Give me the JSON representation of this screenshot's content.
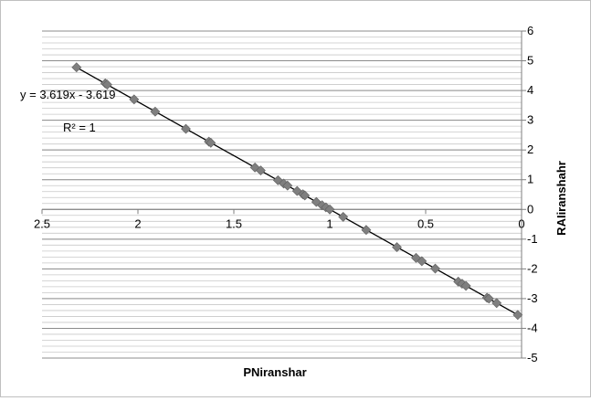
{
  "chart_data": {
    "type": "scatter",
    "title": "",
    "xlabel": "PNiranshar",
    "ylabel": "RAIiranshahr",
    "xlim": [
      2.5,
      0
    ],
    "ylim": [
      -5,
      6
    ],
    "x_reversed": true,
    "x_ticks": [
      2.5,
      2,
      1.5,
      1,
      0.5,
      0
    ],
    "x_tick_labels": [
      "2.5",
      "2",
      "1.5",
      "1",
      "0.5",
      "0"
    ],
    "y_ticks": [
      -5,
      -4,
      -3,
      -2,
      -1,
      0,
      1,
      2,
      3,
      4,
      5,
      6
    ],
    "y_tick_labels": [
      "-5",
      "-4",
      "-3",
      "-2",
      "-1",
      "0",
      "1",
      "2",
      "3",
      "4",
      "5",
      "6"
    ],
    "y_axis_side": "right",
    "grid": "horizontal major and minor",
    "marker": "diamond",
    "marker_color": "#7f7f7f",
    "trendline": {
      "type": "linear",
      "slope": 3.619,
      "intercept": -3.619,
      "equation_label": "y = 3.619x - 3.619",
      "r2_label": "R² = 1",
      "color": "#000000"
    },
    "series": [
      {
        "x": [
          2.32,
          2.17,
          2.16,
          2.02,
          1.91,
          1.75,
          1.63,
          1.62,
          1.39,
          1.36,
          1.27,
          1.24,
          1.22,
          1.17,
          1.14,
          1.13,
          1.07,
          1.04,
          1.02,
          1.0,
          0.93,
          0.81,
          0.65,
          0.55,
          0.52,
          0.45,
          0.33,
          0.31,
          0.29,
          0.18,
          0.17,
          0.13,
          0.02
        ],
        "y": [
          4.78,
          4.24,
          4.2,
          3.7,
          3.29,
          2.71,
          2.28,
          2.24,
          1.41,
          1.31,
          0.98,
          0.87,
          0.8,
          0.62,
          0.51,
          0.47,
          0.25,
          0.14,
          0.07,
          0.0,
          -0.25,
          -0.69,
          -1.27,
          -1.63,
          -1.74,
          -1.99,
          -2.43,
          -2.5,
          -2.57,
          -2.97,
          -3.0,
          -3.15,
          -3.55
        ]
      }
    ]
  }
}
